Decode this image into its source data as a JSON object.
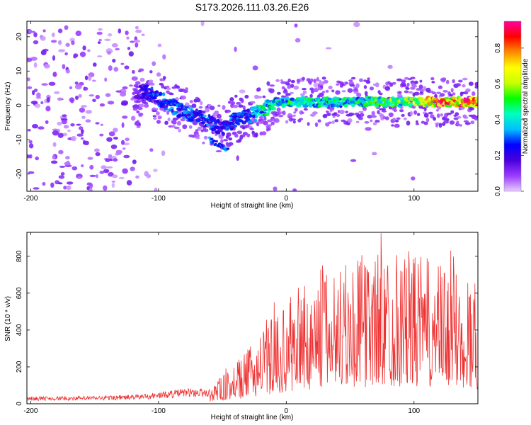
{
  "title": "S173.2026.111.03.26.E26",
  "chart_data": [
    {
      "type": "heatmap",
      "xlabel": "Height of straight line (km)",
      "ylabel": "Frequency (Hz)",
      "xlim": [
        -203,
        150
      ],
      "ylim": [
        -25,
        24.5
      ],
      "xticks": [
        -200,
        -100,
        0,
        100
      ],
      "yticks": [
        -20,
        -10,
        0,
        10,
        20
      ],
      "colorbar": {
        "label": "Normalized spectral amplitude",
        "range": [
          0,
          0.95
        ],
        "ticks": [
          "0.0",
          "0.2",
          "0.4",
          "0.6",
          "0.8"
        ],
        "colors": [
          "#e8ccff",
          "#9a3cff",
          "#4a00dd",
          "#0000ff",
          "#00bfff",
          "#00ffc0",
          "#00ff00",
          "#c8ff00",
          "#ffff00",
          "#ff8c00",
          "#ff0000",
          "#ff00a0"
        ]
      },
      "ridge": {
        "x": [
          -200,
          -120,
          -110,
          -100,
          -90,
          -80,
          -70,
          -60,
          -50,
          -40,
          -30,
          -20,
          -10,
          0,
          20,
          40,
          60,
          80,
          100,
          120,
          150
        ],
        "freq": [
          0,
          4,
          4,
          2,
          0,
          -2,
          -3,
          -5,
          -7,
          -4,
          -3,
          -2,
          1,
          1,
          1,
          1,
          1,
          1,
          1,
          1,
          1
        ],
        "amplitude": [
          0.05,
          0.12,
          0.25,
          0.3,
          0.3,
          0.35,
          0.3,
          0.3,
          0.25,
          0.3,
          0.3,
          0.45,
          0.45,
          0.5,
          0.45,
          0.45,
          0.5,
          0.55,
          0.55,
          0.85,
          0.9
        ]
      },
      "branch": {
        "x": [
          -60,
          -55,
          -50,
          -45
        ],
        "freq": [
          -10,
          -11,
          -12,
          -13
        ]
      }
    },
    {
      "type": "line",
      "xlabel": "Height of straight line (km)",
      "ylabel": "SNR (10 * v/v)",
      "xlim": [
        -203,
        150
      ],
      "ylim": [
        0,
        930
      ],
      "xticks": [
        -200,
        -100,
        0,
        100
      ],
      "yticks": [
        0,
        200,
        400,
        600,
        800
      ],
      "series": [
        {
          "name": "SNR",
          "color": "#ee3333",
          "envelope_x": [
            -200,
            -150,
            -120,
            -100,
            -80,
            -60,
            -40,
            -20,
            0,
            20,
            40,
            60,
            80,
            100,
            120,
            150
          ],
          "envelope_y": [
            28,
            30,
            35,
            45,
            60,
            60,
            110,
            220,
            300,
            380,
            420,
            450,
            470,
            460,
            420,
            380
          ]
        }
      ]
    }
  ]
}
